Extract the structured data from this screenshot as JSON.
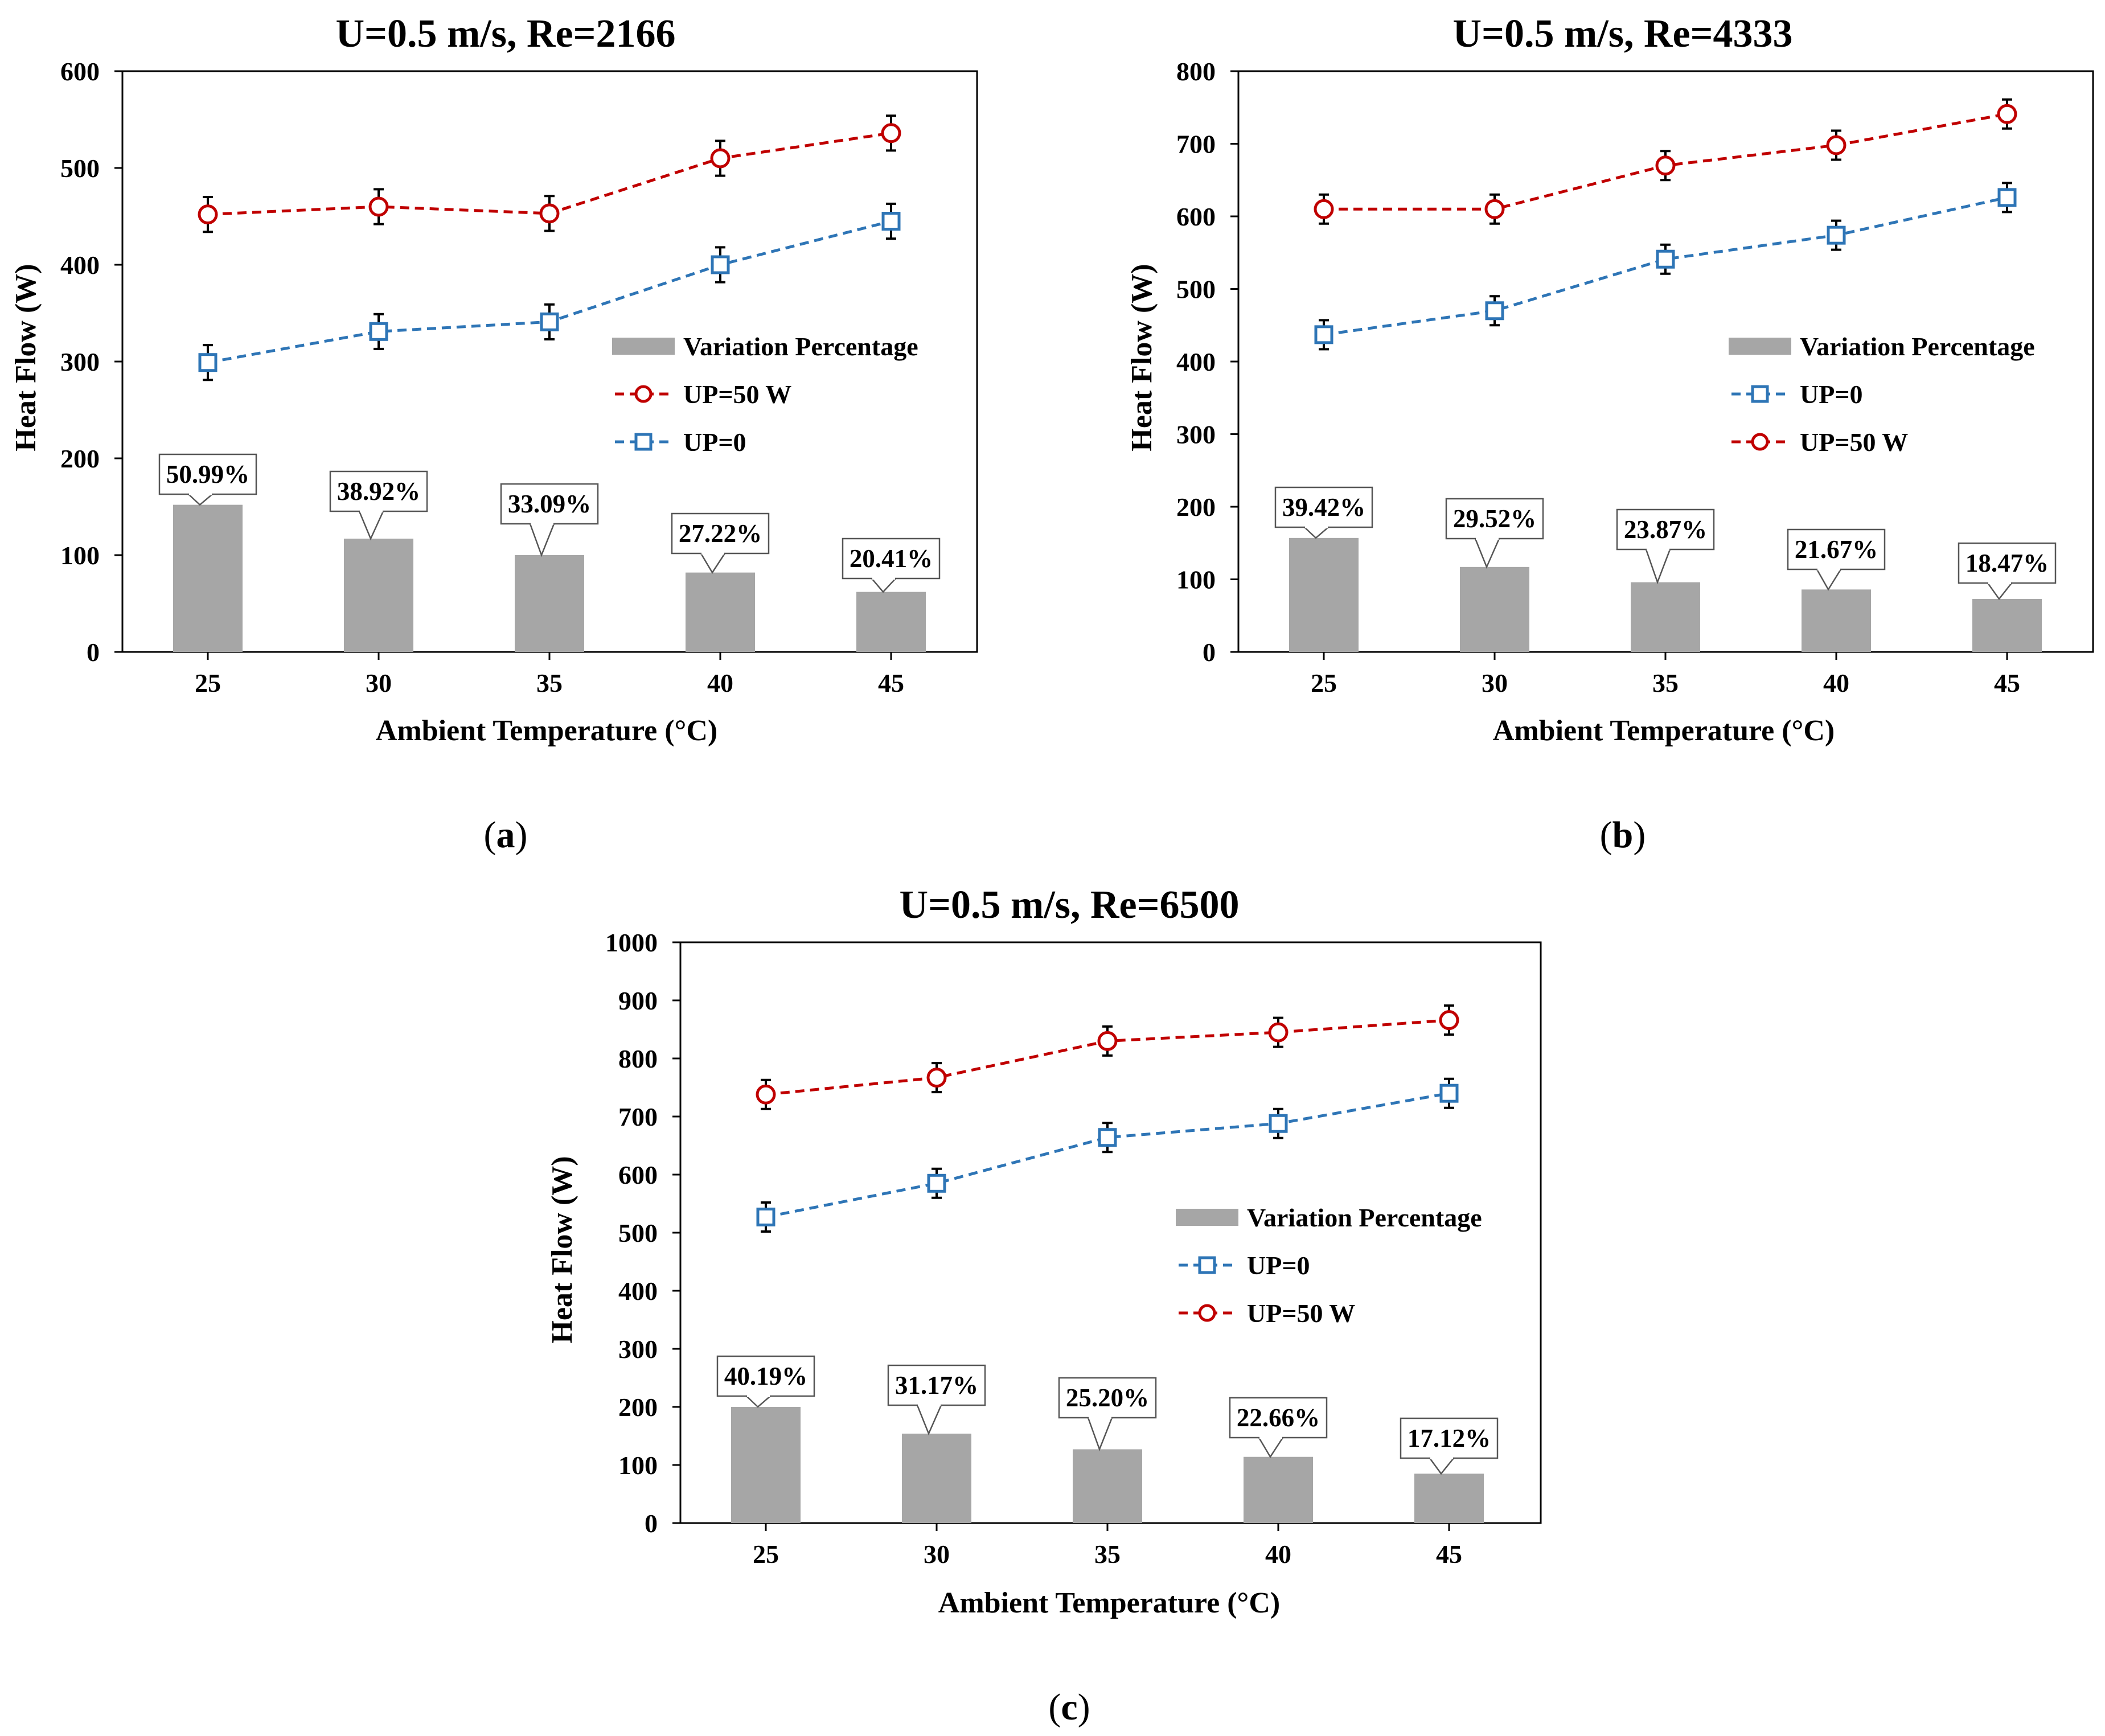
{
  "figure": {
    "panels": [
      {
        "label_open": "(",
        "label_letter": "a",
        "label_close": ")"
      },
      {
        "label_open": "(",
        "label_letter": "b",
        "label_close": ")"
      },
      {
        "label_open": "(",
        "label_letter": "c",
        "label_close": ")"
      }
    ]
  },
  "colors": {
    "bar": "#a6a6a6",
    "up50": "#c00000",
    "up0": "#2e75b6",
    "axis": "#000000"
  },
  "chart_data": [
    {
      "type": "bar+line",
      "title": "U=0.5 m/s, Re=2166",
      "xlabel": "Ambient Temperature  (°C)",
      "ylabel": "Heat Flow (W)",
      "categories": [
        "25",
        "30",
        "35",
        "40",
        "45"
      ],
      "ylim": [
        0,
        600
      ],
      "yticks": [
        0,
        100,
        200,
        300,
        400,
        500,
        600
      ],
      "series": [
        {
          "name": "Variation Percentage",
          "kind": "bar",
          "values": [
            152,
            117,
            100,
            82,
            62
          ],
          "labels": [
            "50.99%",
            "38.92%",
            "33.09%",
            "27.22%",
            "20.41%"
          ]
        },
        {
          "name": "UP=50 W",
          "kind": "line",
          "marker": "circle",
          "color": "#c00000",
          "values": [
            452,
            460,
            453,
            510,
            536
          ],
          "error": [
            18,
            18,
            18,
            18,
            18
          ]
        },
        {
          "name": "UP=0",
          "kind": "line",
          "marker": "square",
          "color": "#2e75b6",
          "values": [
            299,
            331,
            341,
            400,
            445
          ],
          "error": [
            18,
            18,
            18,
            18,
            18
          ]
        }
      ],
      "legend_order": [
        "Variation Percentage",
        "UP=50 W",
        "UP=0"
      ],
      "legend_position": "middle-right"
    },
    {
      "type": "bar+line",
      "title": "U=0.5 m/s, Re=4333",
      "xlabel": "Ambient Temperature  (°C)",
      "ylabel": "Heat Flow (W)",
      "categories": [
        "25",
        "30",
        "35",
        "40",
        "45"
      ],
      "ylim": [
        0,
        800
      ],
      "yticks": [
        0,
        100,
        200,
        300,
        400,
        500,
        600,
        700,
        800
      ],
      "series": [
        {
          "name": "Variation Percentage",
          "kind": "bar",
          "values": [
            157,
            117,
            96,
            86,
            73
          ],
          "labels": [
            "39.42%",
            "29.52%",
            "23.87%",
            "21.67%",
            "18.47%"
          ]
        },
        {
          "name": "UP=50 W",
          "kind": "line",
          "marker": "circle",
          "color": "#c00000",
          "values": [
            610,
            610,
            670,
            698,
            741
          ],
          "error": [
            20,
            20,
            20,
            20,
            20
          ]
        },
        {
          "name": "UP=0",
          "kind": "line",
          "marker": "square",
          "color": "#2e75b6",
          "values": [
            437,
            470,
            541,
            574,
            626
          ],
          "error": [
            20,
            20,
            20,
            20,
            20
          ]
        }
      ],
      "legend_order": [
        "Variation Percentage",
        "UP=0",
        "UP=50 W"
      ],
      "legend_position": "middle-right"
    },
    {
      "type": "bar+line",
      "title": "U=0.5 m/s, Re=6500",
      "xlabel": "Ambient Temperature  (°C)",
      "ylabel": "Heat Flow (W)",
      "categories": [
        "25",
        "30",
        "35",
        "40",
        "45"
      ],
      "ylim": [
        0,
        1000
      ],
      "yticks": [
        0,
        100,
        200,
        300,
        400,
        500,
        600,
        700,
        800,
        900,
        1000
      ],
      "series": [
        {
          "name": "Variation Percentage",
          "kind": "bar",
          "values": [
            200,
            154,
            127,
            114,
            85
          ],
          "labels": [
            "40.19%",
            "31.17%",
            "25.20%",
            "22.66%",
            "17.12%"
          ]
        },
        {
          "name": "UP=50 W",
          "kind": "line",
          "marker": "circle",
          "color": "#c00000",
          "values": [
            738,
            767,
            830,
            845,
            866
          ],
          "error": [
            25,
            25,
            25,
            25,
            25
          ]
        },
        {
          "name": "UP=0",
          "kind": "line",
          "marker": "square",
          "color": "#2e75b6",
          "values": [
            527,
            585,
            664,
            688,
            740
          ],
          "error": [
            25,
            25,
            25,
            25,
            25
          ]
        }
      ],
      "legend_order": [
        "Variation Percentage",
        "UP=0",
        "UP=50 W"
      ],
      "legend_position": "middle-right"
    }
  ]
}
